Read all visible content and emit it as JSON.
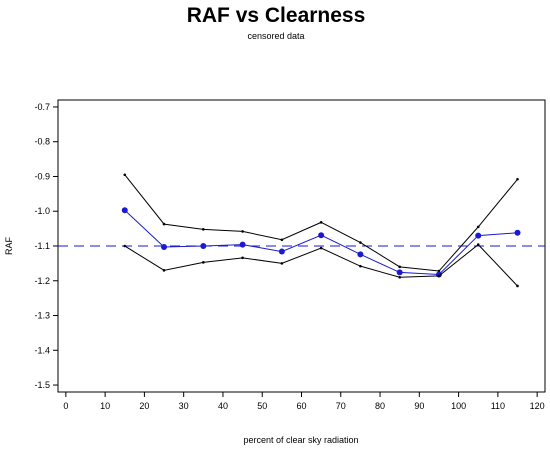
{
  "chart_data": {
    "type": "line",
    "title": "RAF vs Clearness",
    "subtitle": "censored data",
    "xlabel": "percent of clear sky radiation",
    "ylabel": "RAF",
    "xlim": [
      -2,
      122
    ],
    "ylim": [
      -1.52,
      -0.68
    ],
    "xticks": [
      0,
      10,
      20,
      30,
      40,
      50,
      60,
      70,
      80,
      90,
      100,
      110,
      120
    ],
    "yticks": [
      -0.7,
      -0.8,
      -0.9,
      -1.0,
      -1.1,
      -1.2,
      -1.3,
      -1.4,
      -1.5
    ],
    "xtick_labels": [
      "0",
      "10",
      "20",
      "30",
      "40",
      "50",
      "60",
      "70",
      "80",
      "90",
      "100",
      "110",
      "120"
    ],
    "ytick_labels": [
      "-0.7",
      "-0.8",
      "-0.9",
      "-1.0",
      "-1.1",
      "-1.2",
      "-1.3",
      "-1.4",
      "-1.5"
    ],
    "x": [
      15,
      25,
      35,
      45,
      55,
      65,
      75,
      85,
      95,
      105,
      115
    ],
    "series": [
      {
        "role": "upper",
        "color": "#000000",
        "values": [
          -0.895,
          -1.037,
          -1.052,
          -1.058,
          -1.082,
          -1.032,
          -1.09,
          -1.16,
          -1.172,
          -1.045,
          -0.908
        ]
      },
      {
        "role": "mean",
        "color": "#1a1ad0",
        "values": [
          -0.997,
          -1.103,
          -1.1,
          -1.096,
          -1.116,
          -1.069,
          -1.124,
          -1.176,
          -1.182,
          -1.07,
          -1.062
        ]
      },
      {
        "role": "lower",
        "color": "#000000",
        "values": [
          -1.1,
          -1.17,
          -1.147,
          -1.134,
          -1.15,
          -1.106,
          -1.158,
          -1.19,
          -1.186,
          -1.096,
          -1.215
        ]
      }
    ],
    "reference_line": {
      "y": -1.1,
      "style": "dashed",
      "color": "#1a1ad0"
    },
    "grid": false,
    "legend": "none"
  }
}
